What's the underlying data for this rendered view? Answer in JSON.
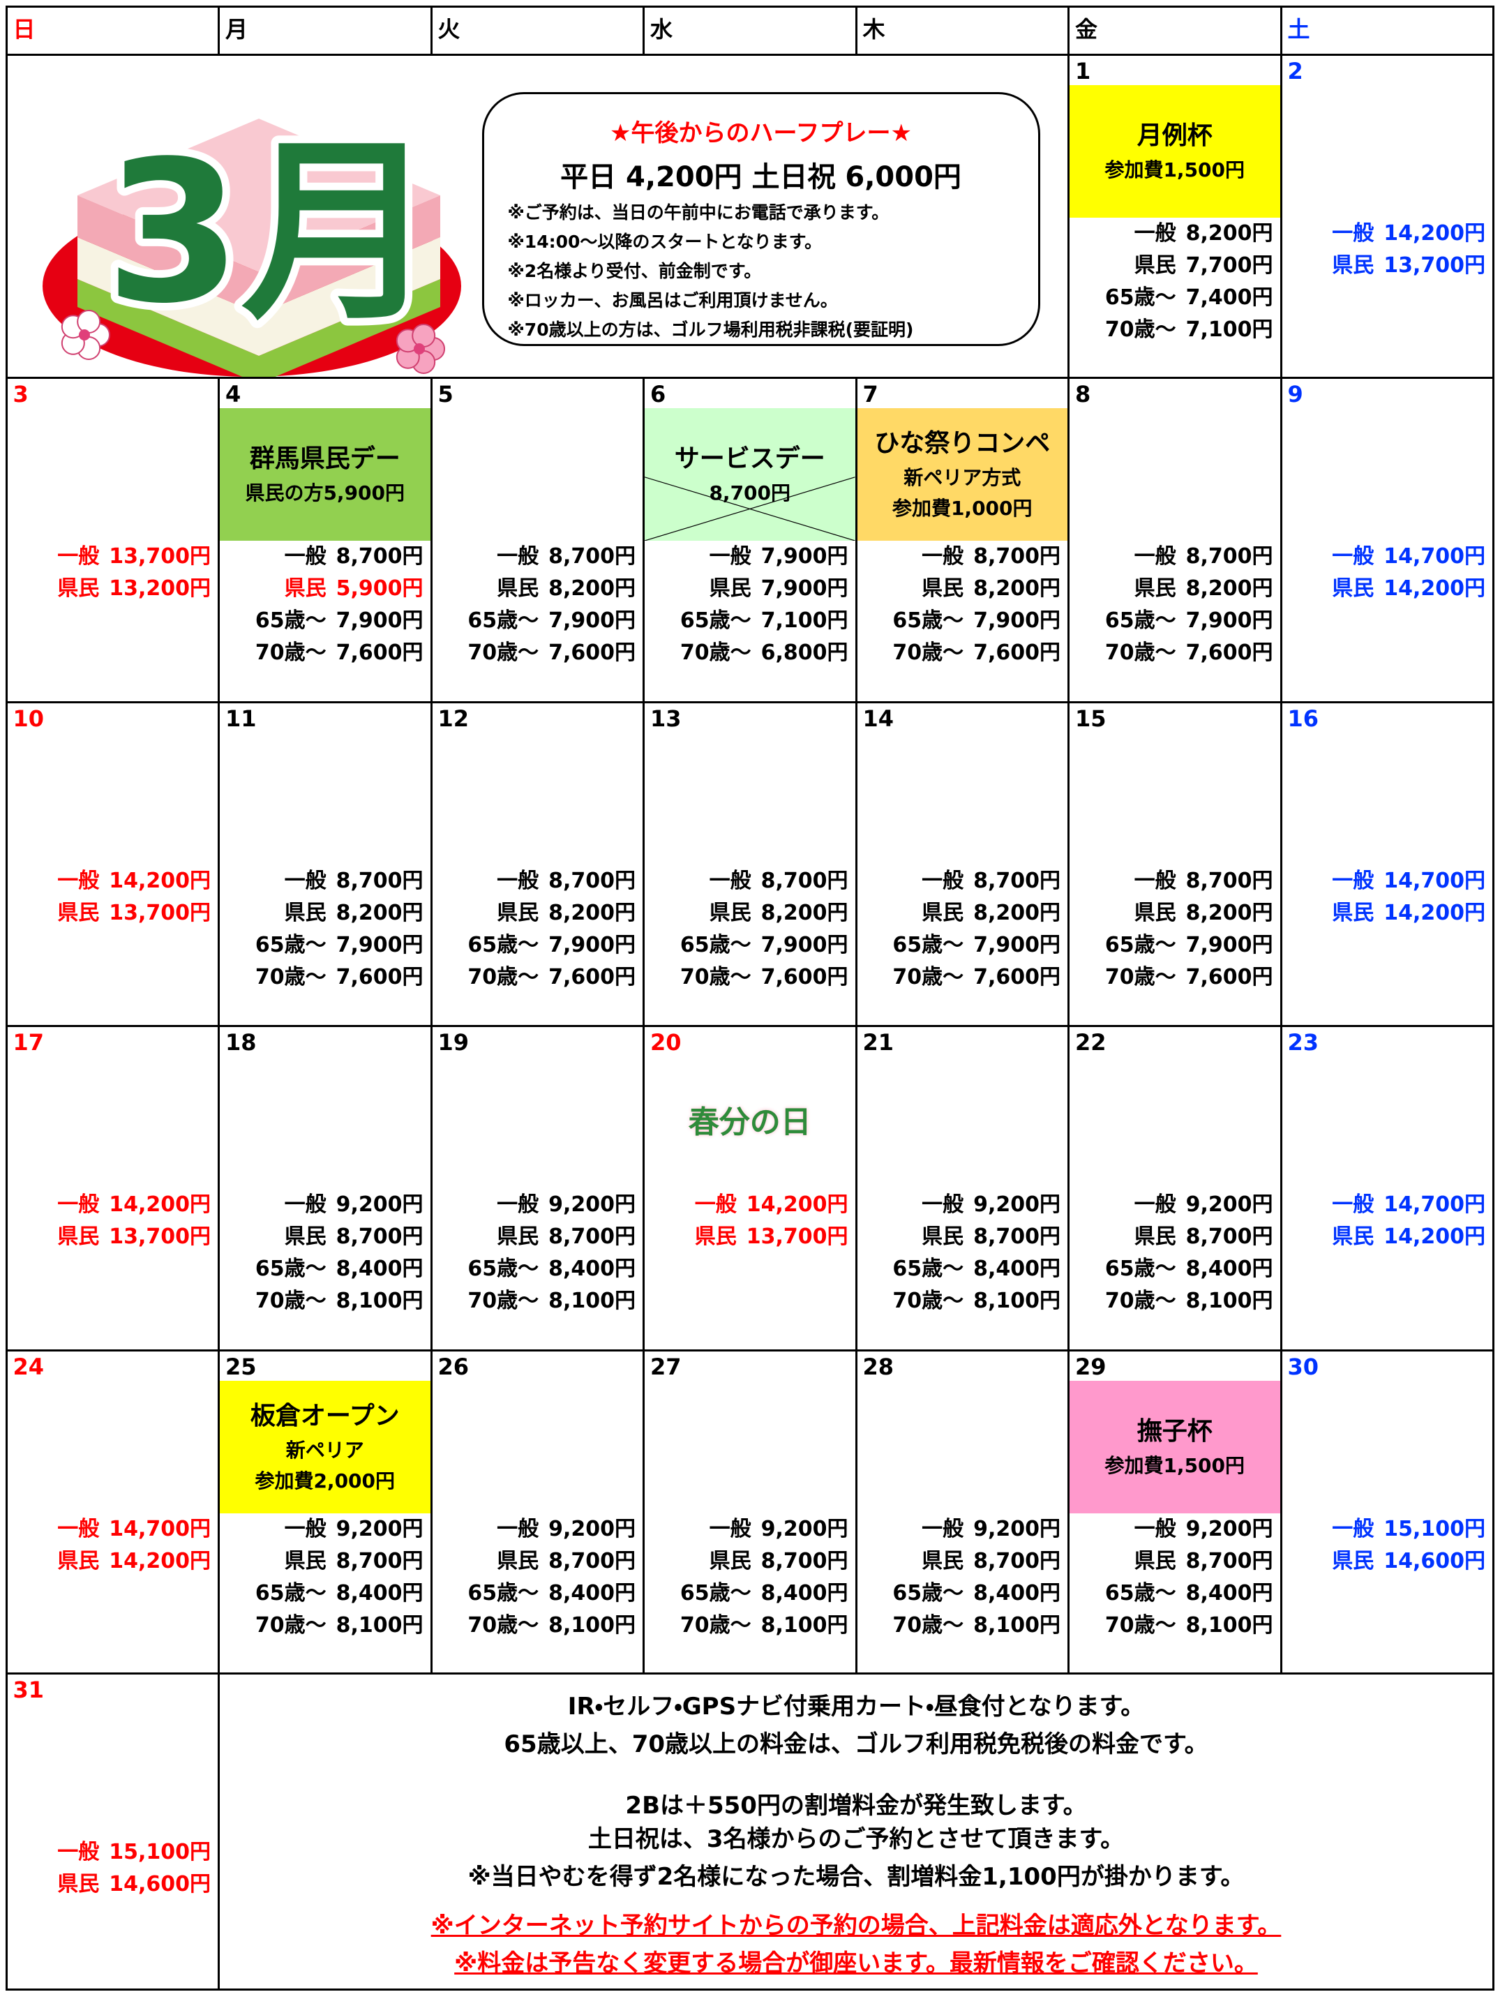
{
  "weekdays": [
    "日",
    "月",
    "火",
    "水",
    "木",
    "金",
    "土"
  ],
  "weekday_colors": [
    "#ff0000",
    "#000000",
    "#000000",
    "#000000",
    "#000000",
    "#000000",
    "#0033ff"
  ],
  "banner": {
    "month_label": "3月",
    "title": "★午後からのハーフプレー★",
    "price_line": "平日 4,200円 土日祝 6,000円",
    "notes": [
      "※ご予約は、当日の午前中にお電話で承ります。",
      "※14:00～以降のスタートとなります。",
      "※2名様より受付、前金制です。",
      "※ロッカー、お風呂はご利用頂けません。",
      "※70歳以上の方は、ゴルフ場利用税非課税(要証明)"
    ]
  },
  "weeks": [
    [
      {
        "day": 1,
        "event": {
          "lines": [
            "月例杯",
            "参加費1,500円"
          ],
          "color": "#ffff00"
        },
        "prices": [
          {
            "label": "一般",
            "price": "8,200円"
          },
          {
            "label": "県民",
            "price": "7,700円"
          },
          {
            "label": "65歳～",
            "price": "7,400円"
          },
          {
            "label": "70歳～",
            "price": "7,100円"
          }
        ]
      },
      {
        "day": 2,
        "color": "#0033ff",
        "prices": [
          {
            "label": "一般",
            "price": "14,200円"
          },
          {
            "label": "県民",
            "price": "13,700円"
          }
        ]
      }
    ],
    [
      {
        "day": 3,
        "color": "#ff0000",
        "prices": [
          {
            "label": "一般",
            "price": "13,700円"
          },
          {
            "label": "県民",
            "price": "13,200円"
          }
        ]
      },
      {
        "day": 4,
        "event": {
          "lines": [
            "群馬県民デー",
            "県民の方5,900円"
          ],
          "color": "#92d050"
        },
        "prices": [
          {
            "label": "一般",
            "price": "8,700円"
          },
          {
            "label": "県民",
            "price": "5,900円",
            "color": "#ff0000"
          },
          {
            "label": "65歳～",
            "price": "7,900円"
          },
          {
            "label": "70歳～",
            "price": "7,600円"
          }
        ]
      },
      {
        "day": 5,
        "prices": [
          {
            "label": "一般",
            "price": "8,700円"
          },
          {
            "label": "県民",
            "price": "8,200円"
          },
          {
            "label": "65歳～",
            "price": "7,900円"
          },
          {
            "label": "70歳～",
            "price": "7,600円"
          }
        ]
      },
      {
        "day": 6,
        "event": {
          "lines": [
            "サービスデー",
            "8,700円"
          ],
          "color": "#ccffcc",
          "crossed_out": true
        },
        "prices": [
          {
            "label": "一般",
            "price": "7,900円"
          },
          {
            "label": "県民",
            "price": "7,900円"
          },
          {
            "label": "65歳～",
            "price": "7,100円"
          },
          {
            "label": "70歳～",
            "price": "6,800円"
          }
        ]
      },
      {
        "day": 7,
        "event": {
          "lines": [
            "ひな祭りコンペ",
            "新ペリア方式",
            "参加費1,000円"
          ],
          "color": "#ffd966"
        },
        "prices": [
          {
            "label": "一般",
            "price": "8,700円"
          },
          {
            "label": "県民",
            "price": "8,200円"
          },
          {
            "label": "65歳～",
            "price": "7,900円"
          },
          {
            "label": "70歳～",
            "price": "7,600円"
          }
        ]
      },
      {
        "day": 8,
        "prices": [
          {
            "label": "一般",
            "price": "8,700円"
          },
          {
            "label": "県民",
            "price": "8,200円"
          },
          {
            "label": "65歳～",
            "price": "7,900円"
          },
          {
            "label": "70歳～",
            "price": "7,600円"
          }
        ]
      },
      {
        "day": 9,
        "color": "#0033ff",
        "prices": [
          {
            "label": "一般",
            "price": "14,700円"
          },
          {
            "label": "県民",
            "price": "14,200円"
          }
        ]
      }
    ],
    [
      {
        "day": 10,
        "color": "#ff0000",
        "prices": [
          {
            "label": "一般",
            "price": "14,200円"
          },
          {
            "label": "県民",
            "price": "13,700円"
          }
        ]
      },
      {
        "day": 11,
        "prices": [
          {
            "label": "一般",
            "price": "8,700円"
          },
          {
            "label": "県民",
            "price": "8,200円"
          },
          {
            "label": "65歳～",
            "price": "7,900円"
          },
          {
            "label": "70歳～",
            "price": "7,600円"
          }
        ]
      },
      {
        "day": 12,
        "prices": [
          {
            "label": "一般",
            "price": "8,700円"
          },
          {
            "label": "県民",
            "price": "8,200円"
          },
          {
            "label": "65歳～",
            "price": "7,900円"
          },
          {
            "label": "70歳～",
            "price": "7,600円"
          }
        ]
      },
      {
        "day": 13,
        "prices": [
          {
            "label": "一般",
            "price": "8,700円"
          },
          {
            "label": "県民",
            "price": "8,200円"
          },
          {
            "label": "65歳～",
            "price": "7,900円"
          },
          {
            "label": "70歳～",
            "price": "7,600円"
          }
        ]
      },
      {
        "day": 14,
        "prices": [
          {
            "label": "一般",
            "price": "8,700円"
          },
          {
            "label": "県民",
            "price": "8,200円"
          },
          {
            "label": "65歳～",
            "price": "7,900円"
          },
          {
            "label": "70歳～",
            "price": "7,600円"
          }
        ]
      },
      {
        "day": 15,
        "prices": [
          {
            "label": "一般",
            "price": "8,700円"
          },
          {
            "label": "県民",
            "price": "8,200円"
          },
          {
            "label": "65歳～",
            "price": "7,900円"
          },
          {
            "label": "70歳～",
            "price": "7,600円"
          }
        ]
      },
      {
        "day": 16,
        "color": "#0033ff",
        "prices": [
          {
            "label": "一般",
            "price": "14,700円"
          },
          {
            "label": "県民",
            "price": "14,200円"
          }
        ]
      }
    ],
    [
      {
        "day": 17,
        "color": "#ff0000",
        "prices": [
          {
            "label": "一般",
            "price": "14,200円"
          },
          {
            "label": "県民",
            "price": "13,700円"
          }
        ]
      },
      {
        "day": 18,
        "prices": [
          {
            "label": "一般",
            "price": "9,200円"
          },
          {
            "label": "県民",
            "price": "8,700円"
          },
          {
            "label": "65歳～",
            "price": "8,400円"
          },
          {
            "label": "70歳～",
            "price": "8,100円"
          }
        ]
      },
      {
        "day": 19,
        "prices": [
          {
            "label": "一般",
            "price": "9,200円"
          },
          {
            "label": "県民",
            "price": "8,700円"
          },
          {
            "label": "65歳～",
            "price": "8,400円"
          },
          {
            "label": "70歳～",
            "price": "8,100円"
          }
        ]
      },
      {
        "day": 20,
        "color": "#ff0000",
        "illustration": "春分の日",
        "prices": [
          {
            "label": "一般",
            "price": "14,200円"
          },
          {
            "label": "県民",
            "price": "13,700円"
          }
        ]
      },
      {
        "day": 21,
        "prices": [
          {
            "label": "一般",
            "price": "9,200円"
          },
          {
            "label": "県民",
            "price": "8,700円"
          },
          {
            "label": "65歳～",
            "price": "8,400円"
          },
          {
            "label": "70歳～",
            "price": "8,100円"
          }
        ]
      },
      {
        "day": 22,
        "prices": [
          {
            "label": "一般",
            "price": "9,200円"
          },
          {
            "label": "県民",
            "price": "8,700円"
          },
          {
            "label": "65歳～",
            "price": "8,400円"
          },
          {
            "label": "70歳～",
            "price": "8,100円"
          }
        ]
      },
      {
        "day": 23,
        "color": "#0033ff",
        "prices": [
          {
            "label": "一般",
            "price": "14,700円"
          },
          {
            "label": "県民",
            "price": "14,200円"
          }
        ]
      }
    ],
    [
      {
        "day": 24,
        "color": "#ff0000",
        "prices": [
          {
            "label": "一般",
            "price": "14,700円"
          },
          {
            "label": "県民",
            "price": "14,200円"
          }
        ]
      },
      {
        "day": 25,
        "event": {
          "lines": [
            "板倉オープン",
            "新ペリア",
            "参加費2,000円"
          ],
          "color": "#ffff00"
        },
        "prices": [
          {
            "label": "一般",
            "price": "9,200円"
          },
          {
            "label": "県民",
            "price": "8,700円"
          },
          {
            "label": "65歳～",
            "price": "8,400円"
          },
          {
            "label": "70歳～",
            "price": "8,100円"
          }
        ]
      },
      {
        "day": 26,
        "prices": [
          {
            "label": "一般",
            "price": "9,200円"
          },
          {
            "label": "県民",
            "price": "8,700円"
          },
          {
            "label": "65歳～",
            "price": "8,400円"
          },
          {
            "label": "70歳～",
            "price": "8,100円"
          }
        ]
      },
      {
        "day": 27,
        "prices": [
          {
            "label": "一般",
            "price": "9,200円"
          },
          {
            "label": "県民",
            "price": "8,700円"
          },
          {
            "label": "65歳～",
            "price": "8,400円"
          },
          {
            "label": "70歳～",
            "price": "8,100円"
          }
        ]
      },
      {
        "day": 28,
        "prices": [
          {
            "label": "一般",
            "price": "9,200円"
          },
          {
            "label": "県民",
            "price": "8,700円"
          },
          {
            "label": "65歳～",
            "price": "8,400円"
          },
          {
            "label": "70歳～",
            "price": "8,100円"
          }
        ]
      },
      {
        "day": 29,
        "event": {
          "lines": [
            "撫子杯",
            "参加費1,500円"
          ],
          "color": "#ff99cc"
        },
        "prices": [
          {
            "label": "一般",
            "price": "9,200円"
          },
          {
            "label": "県民",
            "price": "8,700円"
          },
          {
            "label": "65歳～",
            "price": "8,400円"
          },
          {
            "label": "70歳～",
            "price": "8,100円"
          }
        ]
      },
      {
        "day": 30,
        "color": "#0033ff",
        "prices": [
          {
            "label": "一般",
            "price": "15,100円"
          },
          {
            "label": "県民",
            "price": "14,600円"
          }
        ]
      }
    ],
    [
      {
        "day": 31,
        "color": "#ff0000",
        "prices": [
          {
            "label": "一般",
            "price": "15,100円"
          },
          {
            "label": "県民",
            "price": "14,600円"
          }
        ]
      }
    ]
  ],
  "footer": {
    "lines": [
      "IR・セルフ・GPSナビ付乗用カート・昼食付となります。",
      "65歳以上、70歳以上の料金は、ゴルフ利用税免税後の料金です。",
      "2Bは＋550円の割増料金が発生致します。",
      "土日祝は、3名様からのご予約とさせて頂きます。",
      "※当日やむを得ず2名様になった場合、割増料金1,100円が掛かります。"
    ],
    "warnings": [
      "※インターネット予約サイトからの予約の場合、上記料金は適応外となります。",
      "※料金は予告なく変更する場合が御座います。最新情報をご確認ください。"
    ],
    "warning_color": "#ff0000"
  }
}
